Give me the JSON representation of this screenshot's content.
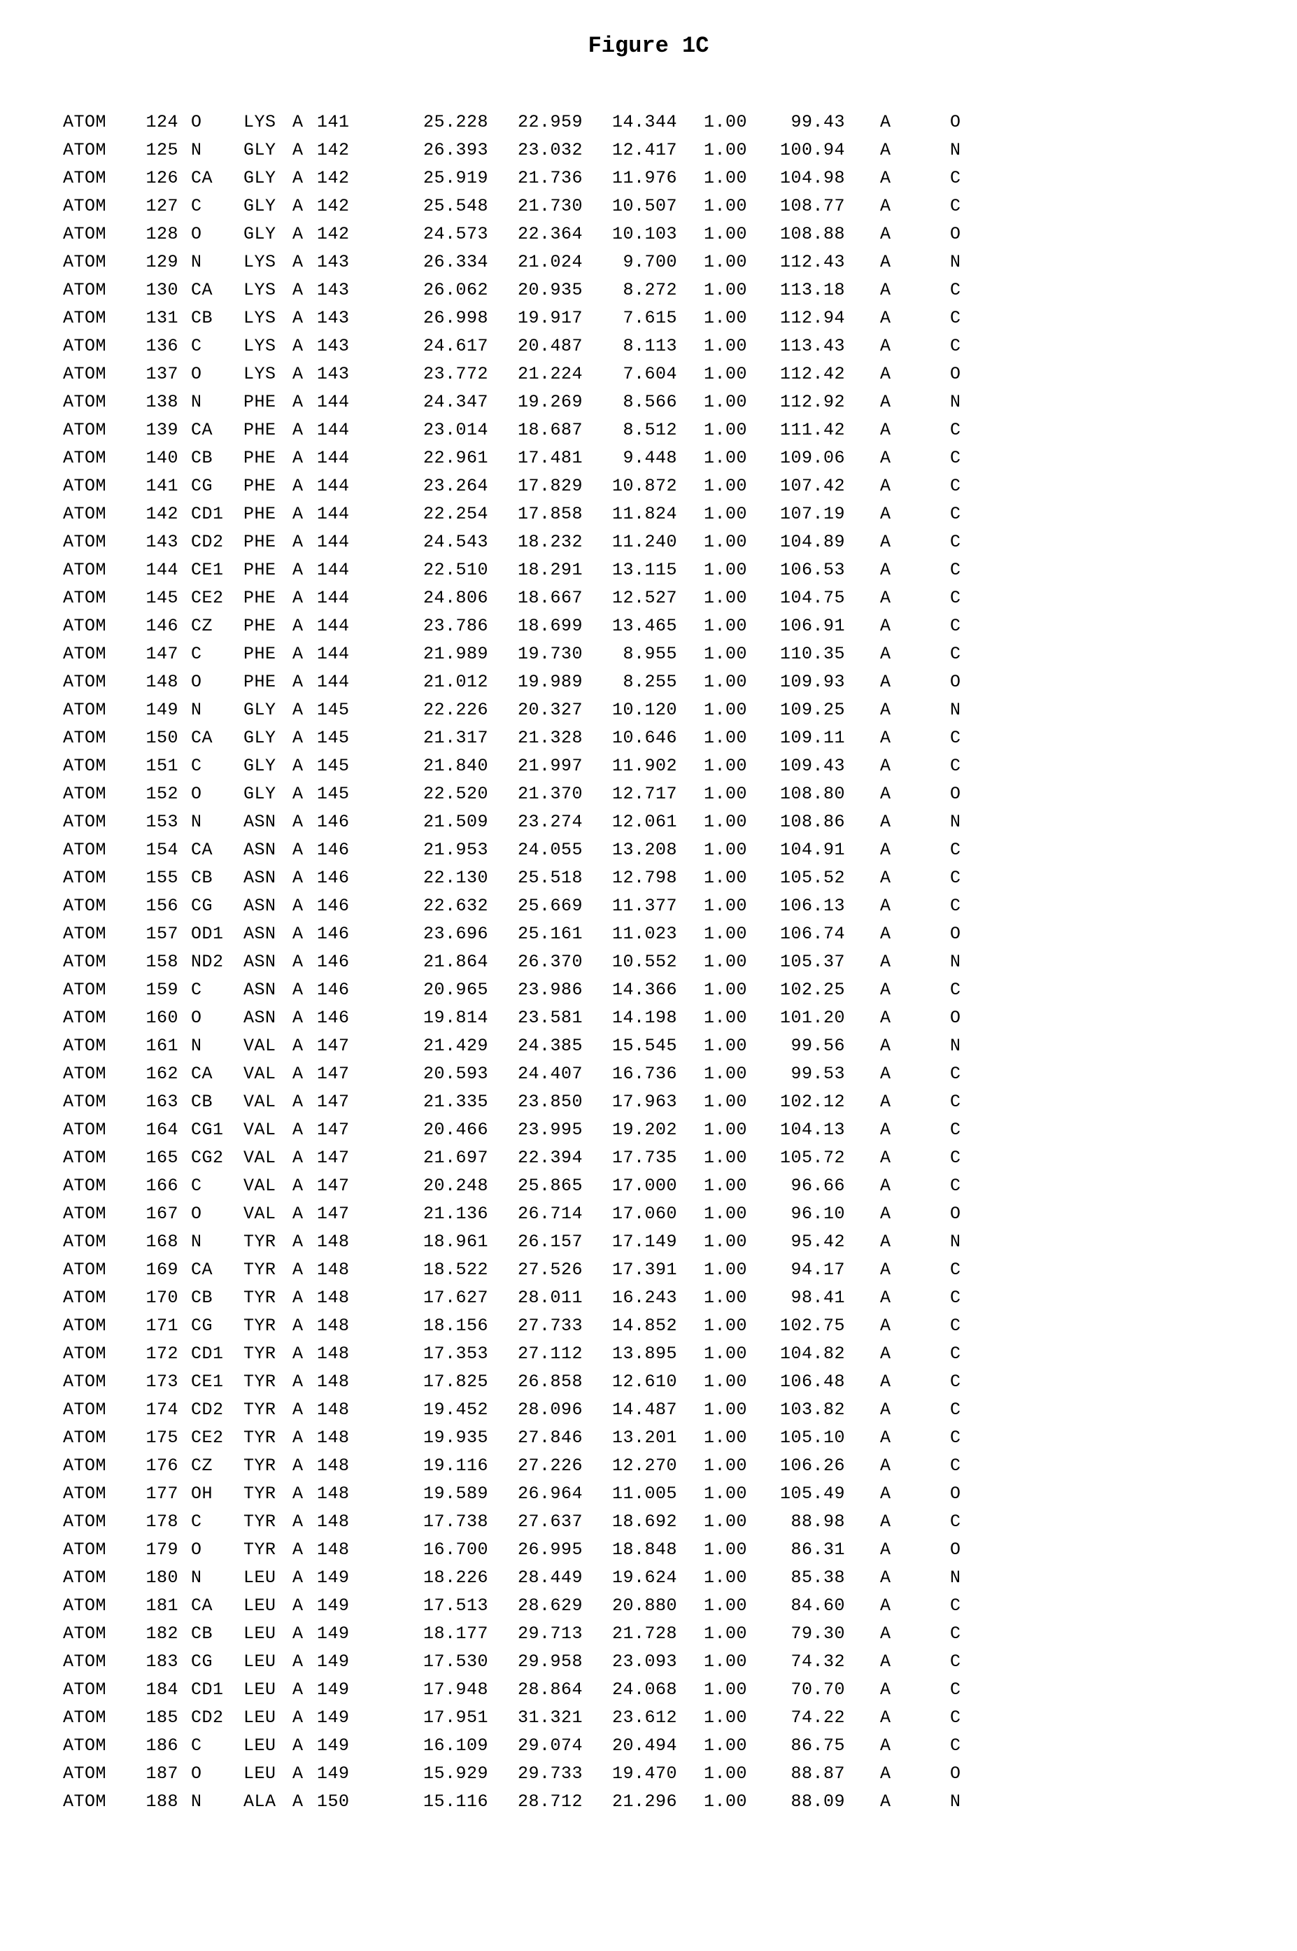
{
  "title": "Figure 1C",
  "rows": [
    {
      "rec": "ATOM",
      "ser": "124",
      "atom": "O",
      "res": "LYS",
      "chain": "A",
      "seq": "141",
      "x": "25.228",
      "y": "22.959",
      "z": "14.344",
      "occ": "1.00",
      "bf": "99.43",
      "seg": "A",
      "el": "O"
    },
    {
      "rec": "ATOM",
      "ser": "125",
      "atom": "N",
      "res": "GLY",
      "chain": "A",
      "seq": "142",
      "x": "26.393",
      "y": "23.032",
      "z": "12.417",
      "occ": "1.00",
      "bf": "100.94",
      "seg": "A",
      "el": "N"
    },
    {
      "rec": "ATOM",
      "ser": "126",
      "atom": "CA",
      "res": "GLY",
      "chain": "A",
      "seq": "142",
      "x": "25.919",
      "y": "21.736",
      "z": "11.976",
      "occ": "1.00",
      "bf": "104.98",
      "seg": "A",
      "el": "C"
    },
    {
      "rec": "ATOM",
      "ser": "127",
      "atom": "C",
      "res": "GLY",
      "chain": "A",
      "seq": "142",
      "x": "25.548",
      "y": "21.730",
      "z": "10.507",
      "occ": "1.00",
      "bf": "108.77",
      "seg": "A",
      "el": "C"
    },
    {
      "rec": "ATOM",
      "ser": "128",
      "atom": "O",
      "res": "GLY",
      "chain": "A",
      "seq": "142",
      "x": "24.573",
      "y": "22.364",
      "z": "10.103",
      "occ": "1.00",
      "bf": "108.88",
      "seg": "A",
      "el": "O"
    },
    {
      "rec": "ATOM",
      "ser": "129",
      "atom": "N",
      "res": "LYS",
      "chain": "A",
      "seq": "143",
      "x": "26.334",
      "y": "21.024",
      "z": "9.700",
      "occ": "1.00",
      "bf": "112.43",
      "seg": "A",
      "el": "N"
    },
    {
      "rec": "ATOM",
      "ser": "130",
      "atom": "CA",
      "res": "LYS",
      "chain": "A",
      "seq": "143",
      "x": "26.062",
      "y": "20.935",
      "z": "8.272",
      "occ": "1.00",
      "bf": "113.18",
      "seg": "A",
      "el": "C"
    },
    {
      "rec": "ATOM",
      "ser": "131",
      "atom": "CB",
      "res": "LYS",
      "chain": "A",
      "seq": "143",
      "x": "26.998",
      "y": "19.917",
      "z": "7.615",
      "occ": "1.00",
      "bf": "112.94",
      "seg": "A",
      "el": "C"
    },
    {
      "rec": "ATOM",
      "ser": "136",
      "atom": "C",
      "res": "LYS",
      "chain": "A",
      "seq": "143",
      "x": "24.617",
      "y": "20.487",
      "z": "8.113",
      "occ": "1.00",
      "bf": "113.43",
      "seg": "A",
      "el": "C"
    },
    {
      "rec": "ATOM",
      "ser": "137",
      "atom": "O",
      "res": "LYS",
      "chain": "A",
      "seq": "143",
      "x": "23.772",
      "y": "21.224",
      "z": "7.604",
      "occ": "1.00",
      "bf": "112.42",
      "seg": "A",
      "el": "O"
    },
    {
      "rec": "ATOM",
      "ser": "138",
      "atom": "N",
      "res": "PHE",
      "chain": "A",
      "seq": "144",
      "x": "24.347",
      "y": "19.269",
      "z": "8.566",
      "occ": "1.00",
      "bf": "112.92",
      "seg": "A",
      "el": "N"
    },
    {
      "rec": "ATOM",
      "ser": "139",
      "atom": "CA",
      "res": "PHE",
      "chain": "A",
      "seq": "144",
      "x": "23.014",
      "y": "18.687",
      "z": "8.512",
      "occ": "1.00",
      "bf": "111.42",
      "seg": "A",
      "el": "C"
    },
    {
      "rec": "ATOM",
      "ser": "140",
      "atom": "CB",
      "res": "PHE",
      "chain": "A",
      "seq": "144",
      "x": "22.961",
      "y": "17.481",
      "z": "9.448",
      "occ": "1.00",
      "bf": "109.06",
      "seg": "A",
      "el": "C"
    },
    {
      "rec": "ATOM",
      "ser": "141",
      "atom": "CG",
      "res": "PHE",
      "chain": "A",
      "seq": "144",
      "x": "23.264",
      "y": "17.829",
      "z": "10.872",
      "occ": "1.00",
      "bf": "107.42",
      "seg": "A",
      "el": "C"
    },
    {
      "rec": "ATOM",
      "ser": "142",
      "atom": "CD1",
      "res": "PHE",
      "chain": "A",
      "seq": "144",
      "x": "22.254",
      "y": "17.858",
      "z": "11.824",
      "occ": "1.00",
      "bf": "107.19",
      "seg": "A",
      "el": "C"
    },
    {
      "rec": "ATOM",
      "ser": "143",
      "atom": "CD2",
      "res": "PHE",
      "chain": "A",
      "seq": "144",
      "x": "24.543",
      "y": "18.232",
      "z": "11.240",
      "occ": "1.00",
      "bf": "104.89",
      "seg": "A",
      "el": "C"
    },
    {
      "rec": "ATOM",
      "ser": "144",
      "atom": "CE1",
      "res": "PHE",
      "chain": "A",
      "seq": "144",
      "x": "22.510",
      "y": "18.291",
      "z": "13.115",
      "occ": "1.00",
      "bf": "106.53",
      "seg": "A",
      "el": "C"
    },
    {
      "rec": "ATOM",
      "ser": "145",
      "atom": "CE2",
      "res": "PHE",
      "chain": "A",
      "seq": "144",
      "x": "24.806",
      "y": "18.667",
      "z": "12.527",
      "occ": "1.00",
      "bf": "104.75",
      "seg": "A",
      "el": "C"
    },
    {
      "rec": "ATOM",
      "ser": "146",
      "atom": "CZ",
      "res": "PHE",
      "chain": "A",
      "seq": "144",
      "x": "23.786",
      "y": "18.699",
      "z": "13.465",
      "occ": "1.00",
      "bf": "106.91",
      "seg": "A",
      "el": "C"
    },
    {
      "rec": "ATOM",
      "ser": "147",
      "atom": "C",
      "res": "PHE",
      "chain": "A",
      "seq": "144",
      "x": "21.989",
      "y": "19.730",
      "z": "8.955",
      "occ": "1.00",
      "bf": "110.35",
      "seg": "A",
      "el": "C"
    },
    {
      "rec": "ATOM",
      "ser": "148",
      "atom": "O",
      "res": "PHE",
      "chain": "A",
      "seq": "144",
      "x": "21.012",
      "y": "19.989",
      "z": "8.255",
      "occ": "1.00",
      "bf": "109.93",
      "seg": "A",
      "el": "O"
    },
    {
      "rec": "ATOM",
      "ser": "149",
      "atom": "N",
      "res": "GLY",
      "chain": "A",
      "seq": "145",
      "x": "22.226",
      "y": "20.327",
      "z": "10.120",
      "occ": "1.00",
      "bf": "109.25",
      "seg": "A",
      "el": "N"
    },
    {
      "rec": "ATOM",
      "ser": "150",
      "atom": "CA",
      "res": "GLY",
      "chain": "A",
      "seq": "145",
      "x": "21.317",
      "y": "21.328",
      "z": "10.646",
      "occ": "1.00",
      "bf": "109.11",
      "seg": "A",
      "el": "C"
    },
    {
      "rec": "ATOM",
      "ser": "151",
      "atom": "C",
      "res": "GLY",
      "chain": "A",
      "seq": "145",
      "x": "21.840",
      "y": "21.997",
      "z": "11.902",
      "occ": "1.00",
      "bf": "109.43",
      "seg": "A",
      "el": "C"
    },
    {
      "rec": "ATOM",
      "ser": "152",
      "atom": "O",
      "res": "GLY",
      "chain": "A",
      "seq": "145",
      "x": "22.520",
      "y": "21.370",
      "z": "12.717",
      "occ": "1.00",
      "bf": "108.80",
      "seg": "A",
      "el": "O"
    },
    {
      "rec": "ATOM",
      "ser": "153",
      "atom": "N",
      "res": "ASN",
      "chain": "A",
      "seq": "146",
      "x": "21.509",
      "y": "23.274",
      "z": "12.061",
      "occ": "1.00",
      "bf": "108.86",
      "seg": "A",
      "el": "N"
    },
    {
      "rec": "ATOM",
      "ser": "154",
      "atom": "CA",
      "res": "ASN",
      "chain": "A",
      "seq": "146",
      "x": "21.953",
      "y": "24.055",
      "z": "13.208",
      "occ": "1.00",
      "bf": "104.91",
      "seg": "A",
      "el": "C"
    },
    {
      "rec": "ATOM",
      "ser": "155",
      "atom": "CB",
      "res": "ASN",
      "chain": "A",
      "seq": "146",
      "x": "22.130",
      "y": "25.518",
      "z": "12.798",
      "occ": "1.00",
      "bf": "105.52",
      "seg": "A",
      "el": "C"
    },
    {
      "rec": "ATOM",
      "ser": "156",
      "atom": "CG",
      "res": "ASN",
      "chain": "A",
      "seq": "146",
      "x": "22.632",
      "y": "25.669",
      "z": "11.377",
      "occ": "1.00",
      "bf": "106.13",
      "seg": "A",
      "el": "C"
    },
    {
      "rec": "ATOM",
      "ser": "157",
      "atom": "OD1",
      "res": "ASN",
      "chain": "A",
      "seq": "146",
      "x": "23.696",
      "y": "25.161",
      "z": "11.023",
      "occ": "1.00",
      "bf": "106.74",
      "seg": "A",
      "el": "O"
    },
    {
      "rec": "ATOM",
      "ser": "158",
      "atom": "ND2",
      "res": "ASN",
      "chain": "A",
      "seq": "146",
      "x": "21.864",
      "y": "26.370",
      "z": "10.552",
      "occ": "1.00",
      "bf": "105.37",
      "seg": "A",
      "el": "N"
    },
    {
      "rec": "ATOM",
      "ser": "159",
      "atom": "C",
      "res": "ASN",
      "chain": "A",
      "seq": "146",
      "x": "20.965",
      "y": "23.986",
      "z": "14.366",
      "occ": "1.00",
      "bf": "102.25",
      "seg": "A",
      "el": "C"
    },
    {
      "rec": "ATOM",
      "ser": "160",
      "atom": "O",
      "res": "ASN",
      "chain": "A",
      "seq": "146",
      "x": "19.814",
      "y": "23.581",
      "z": "14.198",
      "occ": "1.00",
      "bf": "101.20",
      "seg": "A",
      "el": "O"
    },
    {
      "rec": "ATOM",
      "ser": "161",
      "atom": "N",
      "res": "VAL",
      "chain": "A",
      "seq": "147",
      "x": "21.429",
      "y": "24.385",
      "z": "15.545",
      "occ": "1.00",
      "bf": "99.56",
      "seg": "A",
      "el": "N"
    },
    {
      "rec": "ATOM",
      "ser": "162",
      "atom": "CA",
      "res": "VAL",
      "chain": "A",
      "seq": "147",
      "x": "20.593",
      "y": "24.407",
      "z": "16.736",
      "occ": "1.00",
      "bf": "99.53",
      "seg": "A",
      "el": "C"
    },
    {
      "rec": "ATOM",
      "ser": "163",
      "atom": "CB",
      "res": "VAL",
      "chain": "A",
      "seq": "147",
      "x": "21.335",
      "y": "23.850",
      "z": "17.963",
      "occ": "1.00",
      "bf": "102.12",
      "seg": "A",
      "el": "C"
    },
    {
      "rec": "ATOM",
      "ser": "164",
      "atom": "CG1",
      "res": "VAL",
      "chain": "A",
      "seq": "147",
      "x": "20.466",
      "y": "23.995",
      "z": "19.202",
      "occ": "1.00",
      "bf": "104.13",
      "seg": "A",
      "el": "C"
    },
    {
      "rec": "ATOM",
      "ser": "165",
      "atom": "CG2",
      "res": "VAL",
      "chain": "A",
      "seq": "147",
      "x": "21.697",
      "y": "22.394",
      "z": "17.735",
      "occ": "1.00",
      "bf": "105.72",
      "seg": "A",
      "el": "C"
    },
    {
      "rec": "ATOM",
      "ser": "166",
      "atom": "C",
      "res": "VAL",
      "chain": "A",
      "seq": "147",
      "x": "20.248",
      "y": "25.865",
      "z": "17.000",
      "occ": "1.00",
      "bf": "96.66",
      "seg": "A",
      "el": "C"
    },
    {
      "rec": "ATOM",
      "ser": "167",
      "atom": "O",
      "res": "VAL",
      "chain": "A",
      "seq": "147",
      "x": "21.136",
      "y": "26.714",
      "z": "17.060",
      "occ": "1.00",
      "bf": "96.10",
      "seg": "A",
      "el": "O"
    },
    {
      "rec": "ATOM",
      "ser": "168",
      "atom": "N",
      "res": "TYR",
      "chain": "A",
      "seq": "148",
      "x": "18.961",
      "y": "26.157",
      "z": "17.149",
      "occ": "1.00",
      "bf": "95.42",
      "seg": "A",
      "el": "N"
    },
    {
      "rec": "ATOM",
      "ser": "169",
      "atom": "CA",
      "res": "TYR",
      "chain": "A",
      "seq": "148",
      "x": "18.522",
      "y": "27.526",
      "z": "17.391",
      "occ": "1.00",
      "bf": "94.17",
      "seg": "A",
      "el": "C"
    },
    {
      "rec": "ATOM",
      "ser": "170",
      "atom": "CB",
      "res": "TYR",
      "chain": "A",
      "seq": "148",
      "x": "17.627",
      "y": "28.011",
      "z": "16.243",
      "occ": "1.00",
      "bf": "98.41",
      "seg": "A",
      "el": "C"
    },
    {
      "rec": "ATOM",
      "ser": "171",
      "atom": "CG",
      "res": "TYR",
      "chain": "A",
      "seq": "148",
      "x": "18.156",
      "y": "27.733",
      "z": "14.852",
      "occ": "1.00",
      "bf": "102.75",
      "seg": "A",
      "el": "C"
    },
    {
      "rec": "ATOM",
      "ser": "172",
      "atom": "CD1",
      "res": "TYR",
      "chain": "A",
      "seq": "148",
      "x": "17.353",
      "y": "27.112",
      "z": "13.895",
      "occ": "1.00",
      "bf": "104.82",
      "seg": "A",
      "el": "C"
    },
    {
      "rec": "ATOM",
      "ser": "173",
      "atom": "CE1",
      "res": "TYR",
      "chain": "A",
      "seq": "148",
      "x": "17.825",
      "y": "26.858",
      "z": "12.610",
      "occ": "1.00",
      "bf": "106.48",
      "seg": "A",
      "el": "C"
    },
    {
      "rec": "ATOM",
      "ser": "174",
      "atom": "CD2",
      "res": "TYR",
      "chain": "A",
      "seq": "148",
      "x": "19.452",
      "y": "28.096",
      "z": "14.487",
      "occ": "1.00",
      "bf": "103.82",
      "seg": "A",
      "el": "C"
    },
    {
      "rec": "ATOM",
      "ser": "175",
      "atom": "CE2",
      "res": "TYR",
      "chain": "A",
      "seq": "148",
      "x": "19.935",
      "y": "27.846",
      "z": "13.201",
      "occ": "1.00",
      "bf": "105.10",
      "seg": "A",
      "el": "C"
    },
    {
      "rec": "ATOM",
      "ser": "176",
      "atom": "CZ",
      "res": "TYR",
      "chain": "A",
      "seq": "148",
      "x": "19.116",
      "y": "27.226",
      "z": "12.270",
      "occ": "1.00",
      "bf": "106.26",
      "seg": "A",
      "el": "C"
    },
    {
      "rec": "ATOM",
      "ser": "177",
      "atom": "OH",
      "res": "TYR",
      "chain": "A",
      "seq": "148",
      "x": "19.589",
      "y": "26.964",
      "z": "11.005",
      "occ": "1.00",
      "bf": "105.49",
      "seg": "A",
      "el": "O"
    },
    {
      "rec": "ATOM",
      "ser": "178",
      "atom": "C",
      "res": "TYR",
      "chain": "A",
      "seq": "148",
      "x": "17.738",
      "y": "27.637",
      "z": "18.692",
      "occ": "1.00",
      "bf": "88.98",
      "seg": "A",
      "el": "C"
    },
    {
      "rec": "ATOM",
      "ser": "179",
      "atom": "O",
      "res": "TYR",
      "chain": "A",
      "seq": "148",
      "x": "16.700",
      "y": "26.995",
      "z": "18.848",
      "occ": "1.00",
      "bf": "86.31",
      "seg": "A",
      "el": "O"
    },
    {
      "rec": "ATOM",
      "ser": "180",
      "atom": "N",
      "res": "LEU",
      "chain": "A",
      "seq": "149",
      "x": "18.226",
      "y": "28.449",
      "z": "19.624",
      "occ": "1.00",
      "bf": "85.38",
      "seg": "A",
      "el": "N"
    },
    {
      "rec": "ATOM",
      "ser": "181",
      "atom": "CA",
      "res": "LEU",
      "chain": "A",
      "seq": "149",
      "x": "17.513",
      "y": "28.629",
      "z": "20.880",
      "occ": "1.00",
      "bf": "84.60",
      "seg": "A",
      "el": "C"
    },
    {
      "rec": "ATOM",
      "ser": "182",
      "atom": "CB",
      "res": "LEU",
      "chain": "A",
      "seq": "149",
      "x": "18.177",
      "y": "29.713",
      "z": "21.728",
      "occ": "1.00",
      "bf": "79.30",
      "seg": "A",
      "el": "C"
    },
    {
      "rec": "ATOM",
      "ser": "183",
      "atom": "CG",
      "res": "LEU",
      "chain": "A",
      "seq": "149",
      "x": "17.530",
      "y": "29.958",
      "z": "23.093",
      "occ": "1.00",
      "bf": "74.32",
      "seg": "A",
      "el": "C"
    },
    {
      "rec": "ATOM",
      "ser": "184",
      "atom": "CD1",
      "res": "LEU",
      "chain": "A",
      "seq": "149",
      "x": "17.948",
      "y": "28.864",
      "z": "24.068",
      "occ": "1.00",
      "bf": "70.70",
      "seg": "A",
      "el": "C"
    },
    {
      "rec": "ATOM",
      "ser": "185",
      "atom": "CD2",
      "res": "LEU",
      "chain": "A",
      "seq": "149",
      "x": "17.951",
      "y": "31.321",
      "z": "23.612",
      "occ": "1.00",
      "bf": "74.22",
      "seg": "A",
      "el": "C"
    },
    {
      "rec": "ATOM",
      "ser": "186",
      "atom": "C",
      "res": "LEU",
      "chain": "A",
      "seq": "149",
      "x": "16.109",
      "y": "29.074",
      "z": "20.494",
      "occ": "1.00",
      "bf": "86.75",
      "seg": "A",
      "el": "C"
    },
    {
      "rec": "ATOM",
      "ser": "187",
      "atom": "O",
      "res": "LEU",
      "chain": "A",
      "seq": "149",
      "x": "15.929",
      "y": "29.733",
      "z": "19.470",
      "occ": "1.00",
      "bf": "88.87",
      "seg": "A",
      "el": "O"
    },
    {
      "rec": "ATOM",
      "ser": "188",
      "atom": "N",
      "res": "ALA",
      "chain": "A",
      "seq": "150",
      "x": "15.116",
      "y": "28.712",
      "z": "21.296",
      "occ": "1.00",
      "bf": "88.09",
      "seg": "A",
      "el": "N"
    }
  ]
}
